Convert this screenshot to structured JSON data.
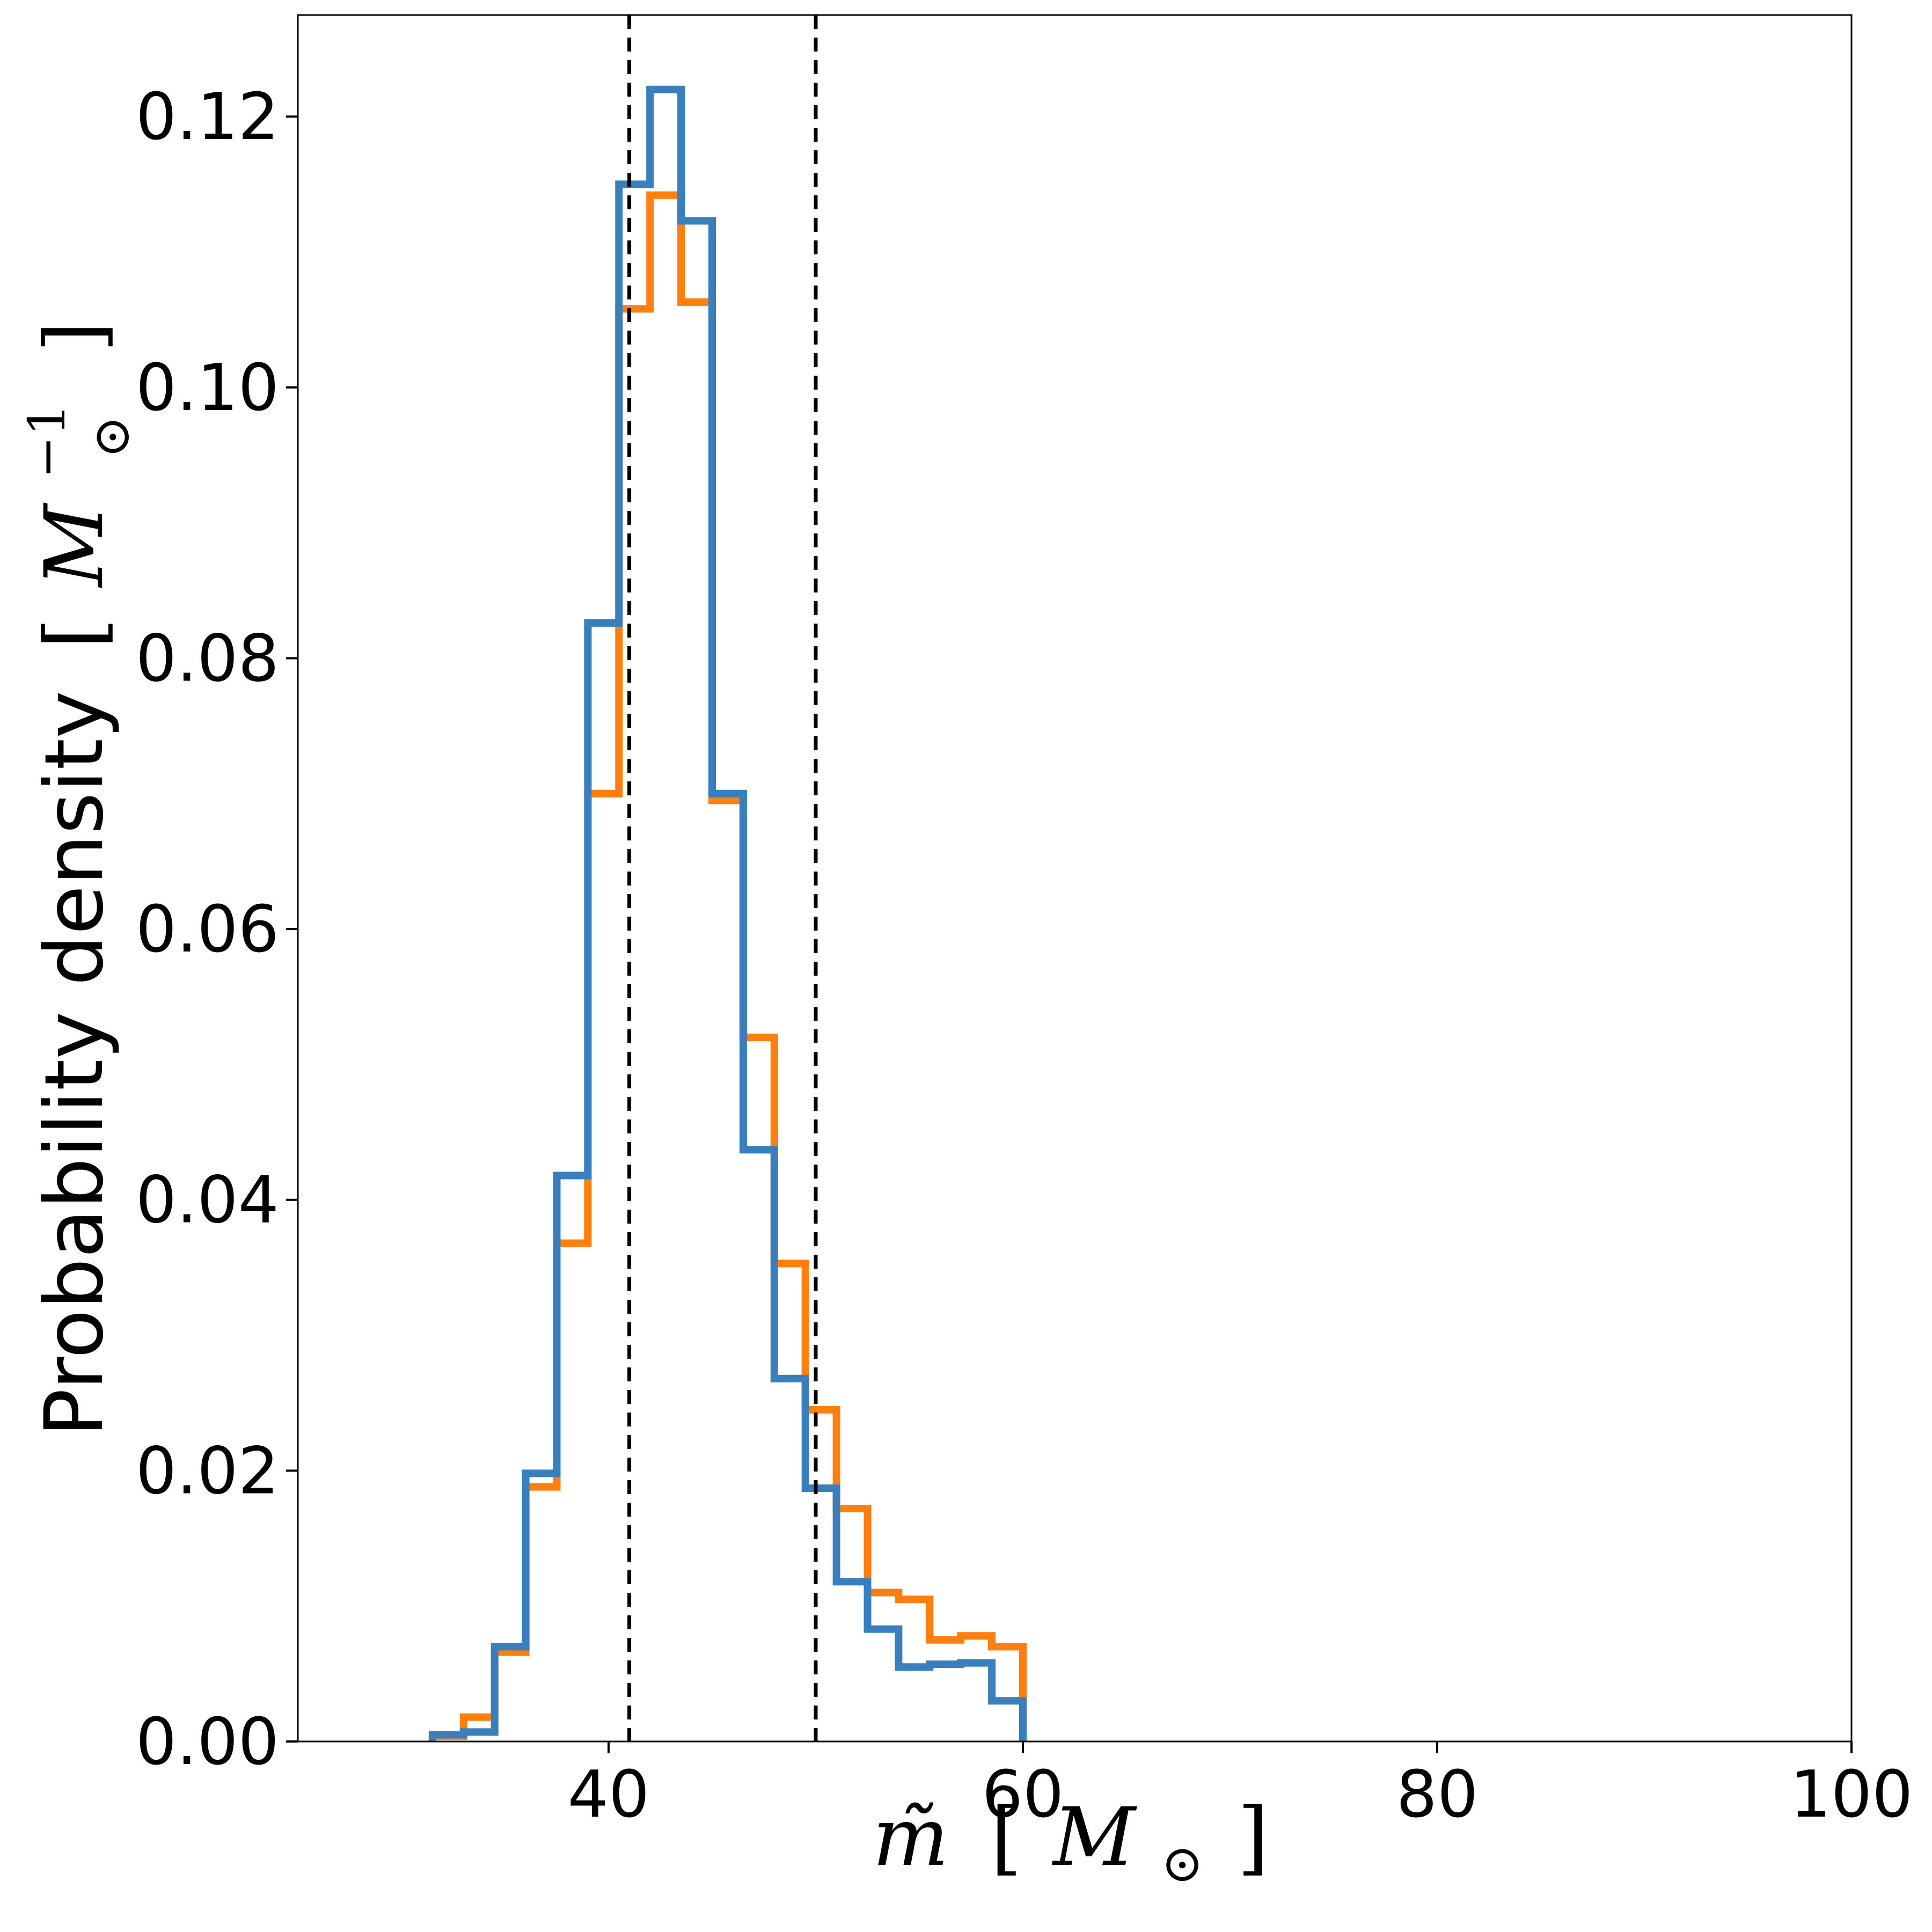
{
  "chart_data": {
    "type": "histogram",
    "xlabel": {
      "symbol": "m̃",
      "open": "[",
      "unit": "M",
      "sub": "⊙",
      "close": "]"
    },
    "ylabel": {
      "text": "Probability density",
      "open": "[",
      "unit": "M",
      "sub": "⊙",
      "sup": "−1",
      "close": "]"
    },
    "xlim": [
      25,
      100
    ],
    "ylim": [
      0,
      0.1275
    ],
    "xticks": [
      40,
      60,
      80,
      100
    ],
    "xtick_labels": [
      "40",
      "60",
      "80",
      "100"
    ],
    "yticks": [
      0,
      0.02,
      0.04,
      0.06,
      0.08,
      0.1,
      0.12
    ],
    "ytick_labels": [
      "0.00",
      "0.02",
      "0.04",
      "0.06",
      "0.08",
      "0.10",
      "0.12"
    ],
    "grid": false,
    "legend": "none",
    "vlines": [
      {
        "x": 41.0,
        "color": "#000000",
        "style": "dashed"
      },
      {
        "x": 50.0,
        "color": "#000000",
        "style": "dashed"
      }
    ],
    "bin_edges": [
      31.5,
      33.0,
      34.5,
      36.0,
      37.5,
      39.0,
      40.5,
      42.0,
      43.5,
      45.0,
      46.5,
      48.0,
      49.5,
      51.0,
      52.5,
      54.0,
      55.5,
      57.0,
      58.5,
      60.0
    ],
    "series": [
      {
        "color": "#ff7f0e",
        "values": [
          0.0004,
          0.0018,
          0.0066,
          0.0188,
          0.0368,
          0.07,
          0.1058,
          0.1142,
          0.1063,
          0.0695,
          0.052,
          0.0353,
          0.0245,
          0.0172,
          0.011,
          0.0105,
          0.0075,
          0.0078,
          0.007
        ]
      },
      {
        "color": "#3a7fbd",
        "values": [
          0.0005,
          0.0007,
          0.007,
          0.0198,
          0.0418,
          0.0826,
          0.115,
          0.122,
          0.1123,
          0.07,
          0.0437,
          0.0268,
          0.0187,
          0.0118,
          0.0083,
          0.0055,
          0.0057,
          0.0058,
          0.003
        ]
      }
    ]
  }
}
